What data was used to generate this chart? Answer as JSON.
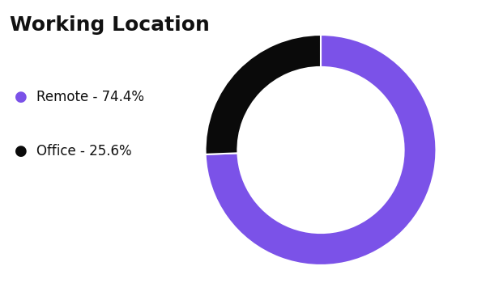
{
  "title": "Working Location",
  "labels": [
    "Remote - 74.4%",
    "Office - 25.6%"
  ],
  "values": [
    74.4,
    25.6
  ],
  "colors": [
    "#7B52E8",
    "#0a0a0a"
  ],
  "legend_colors": [
    "#7B52E8",
    "#0a0a0a"
  ],
  "background_color": "#ffffff",
  "title_fontsize": 18,
  "legend_fontsize": 12,
  "donut_width": 0.28,
  "startangle": 90
}
